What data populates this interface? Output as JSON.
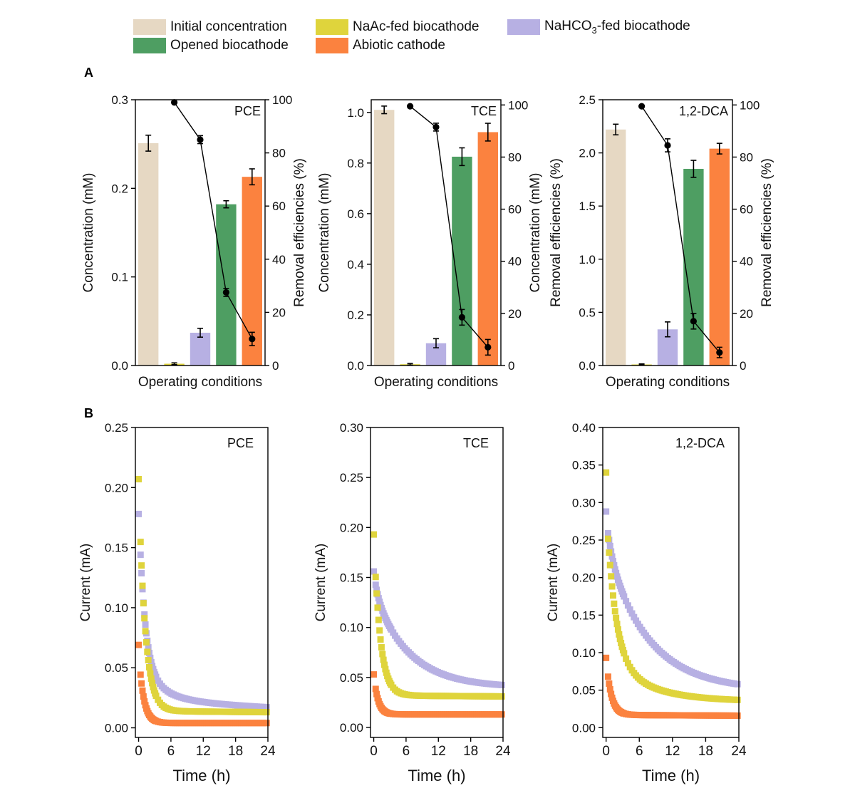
{
  "legend": {
    "items": [
      {
        "label": "Initial concentration",
        "color": "#e6d8c3"
      },
      {
        "label": "NaAc-fed biocathode",
        "color": "#dfd43c"
      },
      {
        "label": "NaHCO3-fed biocathode",
        "label_main": "NaHCO",
        "label_sub": "3",
        "label_tail": "-fed biocathode",
        "color": "#b7b0e3"
      },
      {
        "label": "Opened biocathode",
        "color": "#4e9e62"
      },
      {
        "label": "Abiotic cathode",
        "color": "#fb823f"
      }
    ]
  },
  "panels": {
    "a_label": "A",
    "b_label": "B"
  },
  "chart_data": [
    {
      "type": "bar",
      "panel": "A",
      "title": "PCE",
      "xlabel": "Operating conditions",
      "ylabel": "Concentration (mM)",
      "y2label": "Removal efficiencies (%)",
      "ylim": [
        0,
        0.3
      ],
      "yticks": [
        "0.0",
        "0.1",
        "0.2",
        "0.3"
      ],
      "ytick_values": [
        0,
        0.1,
        0.2,
        0.3
      ],
      "y2lim": [
        0,
        100
      ],
      "y2ticks": [
        0,
        20,
        40,
        60,
        80,
        100
      ],
      "categories": [
        "Initial concentration",
        "NaAc-fed biocathode",
        "NaHCO3-fed biocathode",
        "Opened biocathode",
        "Abiotic cathode"
      ],
      "values": [
        0.251,
        0.002,
        0.037,
        0.182,
        0.213
      ],
      "errors": [
        0.009,
        0.001,
        0.005,
        0.004,
        0.009
      ],
      "efficiency": [
        null,
        99,
        85,
        27.5,
        10
      ],
      "efficiency_errors": [
        null,
        0,
        1.5,
        1.5,
        2.5
      ]
    },
    {
      "type": "bar",
      "panel": "A",
      "title": "TCE",
      "xlabel": "Operating conditions",
      "ylabel": "Concentration (mM)",
      "y2label": "Concentration (mM)",
      "ylim": [
        0,
        1.05
      ],
      "yticks": [
        "0.0",
        "0.2",
        "0.4",
        "0.6",
        "0.8",
        "1.0"
      ],
      "ytick_values": [
        0,
        0.2,
        0.4,
        0.6,
        0.8,
        1.0
      ],
      "y2lim": [
        0,
        102
      ],
      "y2ticks": [
        0,
        20,
        40,
        60,
        80,
        100
      ],
      "categories": [
        "Initial concentration",
        "NaAc-fed biocathode",
        "NaHCO3-fed biocathode",
        "Opened biocathode",
        "Abiotic cathode"
      ],
      "values": [
        1.01,
        0.005,
        0.088,
        0.825,
        0.922
      ],
      "errors": [
        0.015,
        0.003,
        0.018,
        0.035,
        0.035
      ],
      "efficiency": [
        null,
        99.5,
        91.5,
        18.5,
        7
      ],
      "efficiency_errors": [
        null,
        0,
        1.5,
        3,
        3
      ]
    },
    {
      "type": "bar",
      "panel": "A",
      "title": "1,2-DCA",
      "xlabel": "Operating conditions",
      "ylabel": "Removal efficiencies (%)",
      "y2label": "Removal efficiencies (%)",
      "ylim": [
        0,
        2.5
      ],
      "yticks": [
        "0.0",
        "0.5",
        "1.0",
        "1.5",
        "2.0",
        "2.5"
      ],
      "ytick_values": [
        0,
        0.5,
        1.0,
        1.5,
        2.0,
        2.5
      ],
      "y2lim": [
        0,
        102
      ],
      "y2ticks": [
        0,
        20,
        40,
        60,
        80,
        100
      ],
      "categories": [
        "Initial concentration",
        "NaAc-fed biocathode",
        "NaHCO3-fed biocathode",
        "Opened biocathode",
        "Abiotic cathode"
      ],
      "values": [
        2.22,
        0.01,
        0.34,
        1.85,
        2.04
      ],
      "errors": [
        0.05,
        0.005,
        0.07,
        0.08,
        0.05
      ],
      "efficiency": [
        null,
        99.5,
        84.5,
        17,
        5
      ],
      "efficiency_errors": [
        null,
        0,
        2.5,
        3,
        2
      ]
    },
    {
      "type": "scatter",
      "panel": "B",
      "title": "PCE",
      "xlabel": "Time (h)",
      "ylabel": "Current (mA)",
      "xlim": [
        -0.6,
        24
      ],
      "xticks": [
        0,
        6,
        12,
        18,
        24
      ],
      "ylim": [
        -0.008,
        0.25
      ],
      "yticks": [
        "0.00",
        "0.05",
        "0.10",
        "0.15",
        "0.20",
        "0.25"
      ],
      "ytick_values": [
        0,
        0.05,
        0.1,
        0.15,
        0.2,
        0.25
      ],
      "series": [
        {
          "name": "NaAc-fed biocathode",
          "model": {
            "y0": 0.207,
            "a1": 0.19,
            "t1": 1.2,
            "a2": 0.0,
            "t2": 1,
            "floor": 0.014,
            "floor_end": 0.013
          },
          "color": "#dfd43c"
        },
        {
          "name": "NaHCO3-fed biocathode",
          "model": {
            "y0": 0.178,
            "a1": 0.13,
            "t1": 1.1,
            "a2": 0.03,
            "t2": 4.0,
            "floor": 0.023,
            "floor_end": 0.017
          },
          "color": "#b7b0e3"
        },
        {
          "name": "Abiotic cathode",
          "model": {
            "y0": 0.069,
            "a1": 0.06,
            "t1": 0.9,
            "a2": 0.0,
            "t2": 1,
            "floor": 0.004,
            "floor_end": 0.004
          },
          "color": "#fb823f"
        }
      ]
    },
    {
      "type": "scatter",
      "panel": "B",
      "title": "TCE",
      "xlabel": "Time (h)",
      "ylabel": "Current (mA)",
      "xlim": [
        -0.6,
        24
      ],
      "xticks": [
        0,
        6,
        12,
        18,
        24
      ],
      "ylim": [
        -0.01,
        0.3
      ],
      "yticks": [
        "0.00",
        "0.05",
        "0.10",
        "0.15",
        "0.20",
        "0.25",
        "0.30"
      ],
      "ytick_values": [
        0,
        0.05,
        0.1,
        0.15,
        0.2,
        0.25,
        0.3
      ],
      "series": [
        {
          "name": "NaAc-fed biocathode",
          "model": {
            "y0": 0.193,
            "a1": 0.16,
            "t1": 1.2,
            "a2": 0.0,
            "t2": 1,
            "floor": 0.032,
            "floor_end": 0.031
          },
          "color": "#dfd43c"
        },
        {
          "name": "NaHCO3-fed biocathode",
          "model": {
            "y0": 0.156,
            "a1": 0.02,
            "t1": 0.8,
            "a2": 0.095,
            "t2": 6.5,
            "floor": 0.04,
            "floor_end": 0.04
          },
          "color": "#b7b0e3"
        },
        {
          "name": "Abiotic cathode",
          "model": {
            "y0": 0.053,
            "a1": 0.04,
            "t1": 0.8,
            "a2": 0.0,
            "t2": 1,
            "floor": 0.013,
            "floor_end": 0.013
          },
          "color": "#fb823f"
        }
      ]
    },
    {
      "type": "scatter",
      "panel": "B",
      "title": "1,2-DCA",
      "xlabel": "Time (h)",
      "ylabel": "Current (mA)",
      "xlim": [
        -0.6,
        24
      ],
      "xticks": [
        0,
        6,
        12,
        18,
        24
      ],
      "ylim": [
        -0.013,
        0.4
      ],
      "yticks": [
        "0.00",
        "0.05",
        "0.10",
        "0.15",
        "0.20",
        "0.25",
        "0.30",
        "0.35",
        "0.40"
      ],
      "ytick_values": [
        0,
        0.05,
        0.1,
        0.15,
        0.2,
        0.25,
        0.3,
        0.35,
        0.4
      ],
      "series": [
        {
          "name": "NaAc-fed biocathode",
          "model": {
            "y0": 0.34,
            "a1": 0.2,
            "t1": 1.6,
            "a2": 0.06,
            "t2": 7.0,
            "floor": 0.035,
            "floor_end": 0.035
          },
          "color": "#dfd43c"
        },
        {
          "name": "NaHCO3-fed biocathode",
          "model": {
            "y0": 0.288,
            "a1": 0.04,
            "t1": 1.0,
            "a2": 0.19,
            "t2": 7.5,
            "floor": 0.05,
            "floor_end": 0.05
          },
          "color": "#b7b0e3"
        },
        {
          "name": "Abiotic cathode",
          "model": {
            "y0": 0.093,
            "a1": 0.076,
            "t1": 0.9,
            "a2": 0.0,
            "t2": 1,
            "floor": 0.017,
            "floor_end": 0.016
          },
          "color": "#fb823f"
        }
      ]
    }
  ]
}
